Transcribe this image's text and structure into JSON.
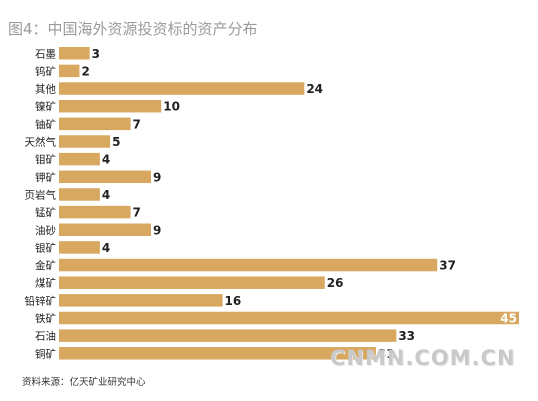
{
  "title": "图4：中国海外资源投资标的资产分布",
  "source_note": "资料来源：亿天矿业研究中心",
  "watermark": "CNMN.COM.CN",
  "colors": {
    "bar": "#d9a860",
    "title": "#9a9a9a",
    "text": "#222222"
  },
  "chart_data": {
    "type": "bar",
    "orientation": "horizontal",
    "categories": [
      "石墨",
      "钨矿",
      "其他",
      "镍矿",
      "铀矿",
      "天然气",
      "钼矿",
      "钾矿",
      "页岩气",
      "锰矿",
      "油砂",
      "银矿",
      "金矿",
      "煤矿",
      "铅锌矿",
      "铁矿",
      "石油",
      "铜矿"
    ],
    "values": [
      3,
      2,
      24,
      10,
      7,
      5,
      4,
      9,
      4,
      7,
      9,
      4,
      37,
      26,
      16,
      45,
      33,
      31
    ],
    "xlim": [
      0,
      45
    ],
    "grid": false,
    "legend": "none"
  }
}
